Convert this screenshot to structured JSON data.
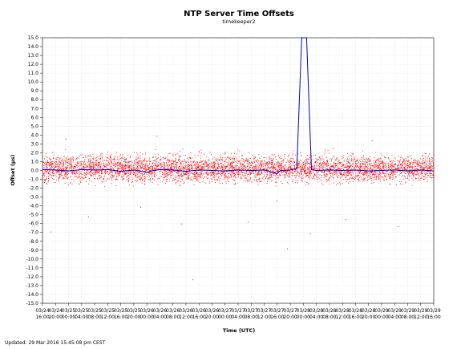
{
  "chart_data": {
    "type": "scatter",
    "title": "NTP Server Time Offsets",
    "subtitle": "timekeeper2",
    "xlabel": "Time (UTC)",
    "ylabel": "Offset (µs)",
    "ylim": [
      -15.0,
      15.0
    ],
    "y_ticks": [
      "15.0",
      "14.0",
      "13.0",
      "12.0",
      "11.0",
      "10.0",
      "9.0",
      "8.0",
      "7.0",
      "6.0",
      "5.0",
      "4.0",
      "3.0",
      "2.0",
      "1.0",
      "0.0",
      "-1.0",
      "-2.0",
      "-3.0",
      "-4.0",
      "-5.0",
      "-6.0",
      "-7.0",
      "-8.0",
      "-9.0",
      "-10.0",
      "-11.0",
      "-12.0",
      "-13.0",
      "-14.0",
      "-15.0"
    ],
    "x_ticks": [
      {
        "date": "03/24",
        "time": "16:00"
      },
      {
        "date": "03/24",
        "time": "20:00"
      },
      {
        "date": "03/25",
        "time": "00:00"
      },
      {
        "date": "03/25",
        "time": "04:00"
      },
      {
        "date": "03/25",
        "time": "08:00"
      },
      {
        "date": "03/25",
        "time": "12:00"
      },
      {
        "date": "03/25",
        "time": "16:00"
      },
      {
        "date": "03/25",
        "time": "20:00"
      },
      {
        "date": "03/26",
        "time": "00:00"
      },
      {
        "date": "03/26",
        "time": "04:00"
      },
      {
        "date": "03/26",
        "time": "08:00"
      },
      {
        "date": "03/26",
        "time": "12:00"
      },
      {
        "date": "03/26",
        "time": "16:00"
      },
      {
        "date": "03/26",
        "time": "20:00"
      },
      {
        "date": "03/27",
        "time": "00:00"
      },
      {
        "date": "03/27",
        "time": "04:00"
      },
      {
        "date": "03/27",
        "time": "08:00"
      },
      {
        "date": "03/27",
        "time": "12:00"
      },
      {
        "date": "03/27",
        "time": "16:00"
      },
      {
        "date": "03/27",
        "time": "20:00"
      },
      {
        "date": "03/28",
        "time": "00:00"
      },
      {
        "date": "03/28",
        "time": "04:00"
      },
      {
        "date": "03/28",
        "time": "08:00"
      },
      {
        "date": "03/28",
        "time": "12:00"
      },
      {
        "date": "03/28",
        "time": "16:00"
      },
      {
        "date": "03/28",
        "time": "20:00"
      },
      {
        "date": "03/29",
        "time": "00:00"
      },
      {
        "date": "03/29",
        "time": "04:00"
      },
      {
        "date": "03/29",
        "time": "08:00"
      },
      {
        "date": "03/29",
        "time": "12:00"
      },
      {
        "date": "03/29",
        "time": "16:00"
      }
    ],
    "grid": true,
    "series": [
      {
        "kind": "scatter",
        "color": "#ff0000",
        "band_center": 0.25,
        "band_spread": 1.4,
        "extreme_outliers": [
          {
            "x": "03/24 18:30",
            "y": -6.9
          },
          {
            "x": "03/25 06:00",
            "y": -5.2
          },
          {
            "x": "03/25 22:00",
            "y": -4.1
          },
          {
            "x": "03/26 10:30",
            "y": -6.0
          },
          {
            "x": "03/26 14:00",
            "y": -12.3
          },
          {
            "x": "03/27 07:00",
            "y": -5.8
          },
          {
            "x": "03/27 15:45",
            "y": -3.4
          },
          {
            "x": "03/27 19:00",
            "y": -8.8
          },
          {
            "x": "03/28 02:00",
            "y": -7.1
          },
          {
            "x": "03/28 13:00",
            "y": -5.5
          },
          {
            "x": "03/29 05:00",
            "y": -6.3
          },
          {
            "x": "03/24 23:00",
            "y": 3.6
          },
          {
            "x": "03/26 03:00",
            "y": 3.9
          },
          {
            "x": "03/28 21:00",
            "y": 3.4
          }
        ]
      },
      {
        "kind": "line",
        "color": "#0000cc",
        "points": [
          {
            "x": "03/24 16:00",
            "y": 0.1
          },
          {
            "x": "03/24 20:00",
            "y": 0.05
          },
          {
            "x": "03/25 00:00",
            "y": -0.05
          },
          {
            "x": "03/25 04:00",
            "y": 0.1
          },
          {
            "x": "03/25 08:00",
            "y": 0.05
          },
          {
            "x": "03/25 12:00",
            "y": 0.1
          },
          {
            "x": "03/25 16:00",
            "y": -0.1
          },
          {
            "x": "03/25 20:00",
            "y": 0.05
          },
          {
            "x": "03/26 00:00",
            "y": -0.2
          },
          {
            "x": "03/26 02:00",
            "y": 0.0
          },
          {
            "x": "03/26 04:00",
            "y": 0.1
          },
          {
            "x": "03/26 08:00",
            "y": 0.05
          },
          {
            "x": "03/26 12:00",
            "y": -0.1
          },
          {
            "x": "03/26 16:00",
            "y": 0.05
          },
          {
            "x": "03/26 20:00",
            "y": 0.0
          },
          {
            "x": "03/27 00:00",
            "y": -0.05
          },
          {
            "x": "03/27 04:00",
            "y": 0.05
          },
          {
            "x": "03/27 08:00",
            "y": 0.0
          },
          {
            "x": "03/27 12:00",
            "y": 0.05
          },
          {
            "x": "03/27 16:00",
            "y": -0.35
          },
          {
            "x": "03/27 17:00",
            "y": 0.0
          },
          {
            "x": "03/27 20:00",
            "y": 0.05
          },
          {
            "x": "03/27 22:00",
            "y": 0.2
          },
          {
            "x": "03/27 23:30",
            "y": 16.0
          },
          {
            "x": "03/28 01:00",
            "y": 16.0
          },
          {
            "x": "03/28 02:30",
            "y": 0.1
          },
          {
            "x": "03/28 04:00",
            "y": 0.0
          },
          {
            "x": "03/28 08:00",
            "y": 0.05
          },
          {
            "x": "03/28 12:00",
            "y": 0.0
          },
          {
            "x": "03/28 16:00",
            "y": 0.05
          },
          {
            "x": "03/28 20:00",
            "y": -0.05
          },
          {
            "x": "03/29 00:00",
            "y": 0.0
          },
          {
            "x": "03/29 04:00",
            "y": 0.05
          },
          {
            "x": "03/29 08:00",
            "y": -0.05
          },
          {
            "x": "03/29 12:00",
            "y": 0.05
          },
          {
            "x": "03/29 16:00",
            "y": -0.05
          }
        ]
      }
    ]
  },
  "footer": {
    "updated": "Updated:  29 Mar 2016  15:45:08 pm CEST"
  }
}
